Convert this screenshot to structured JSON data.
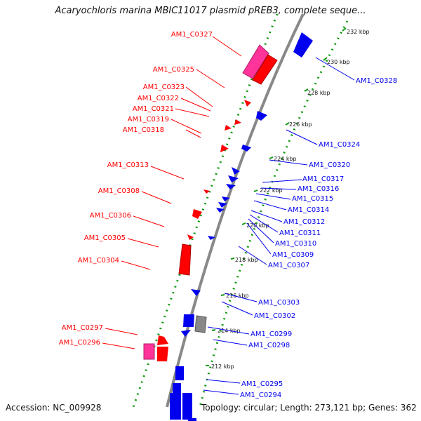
{
  "title": "Acaryochloris marina MBIC11017 plasmid pREB3, complete seque...",
  "footer": {
    "accession": "Accession: NC_009928",
    "topology": "Topology: circular; Length: 273,121 bp; Genes: 362"
  },
  "colors": {
    "forward_cds": "#ff0000",
    "forward_other": "#ff3399",
    "reverse_cds": "#0000ee",
    "pseudo": "#888888",
    "backbone": "#888888",
    "tick": "#119911"
  },
  "ticks": [
    "232 kbp",
    "230 kbp",
    "228 kbp",
    "226 kbp",
    "224 kbp",
    "222 kbp",
    "220 kbp",
    "218 kbp",
    "216 kbp",
    "214 kbp",
    "212 kbp"
  ],
  "forward_labels": [
    "AM1_C0327",
    "AM1_C0325",
    "AM1_C0323",
    "AM1_C0322",
    "AM1_C0321",
    "AM1_C0319",
    "AM1_C0318",
    "AM1_C0313",
    "AM1_C0308",
    "AM1_C0306",
    "AM1_C0305",
    "AM1_C0304",
    "AM1_C0297",
    "AM1_C0296"
  ],
  "reverse_labels": [
    "AM1_C0328",
    "AM1_C0324",
    "AM1_C0320",
    "AM1_C0317",
    "AM1_C0316",
    "AM1_C0315",
    "AM1_C0314",
    "AM1_C0312",
    "AM1_C0311",
    "AM1_C0310",
    "AM1_C0309",
    "AM1_C0307",
    "AM1_C0303",
    "AM1_C0302",
    "AM1_C0299",
    "AM1_C0298",
    "AM1_C0295",
    "AM1_C0294"
  ]
}
